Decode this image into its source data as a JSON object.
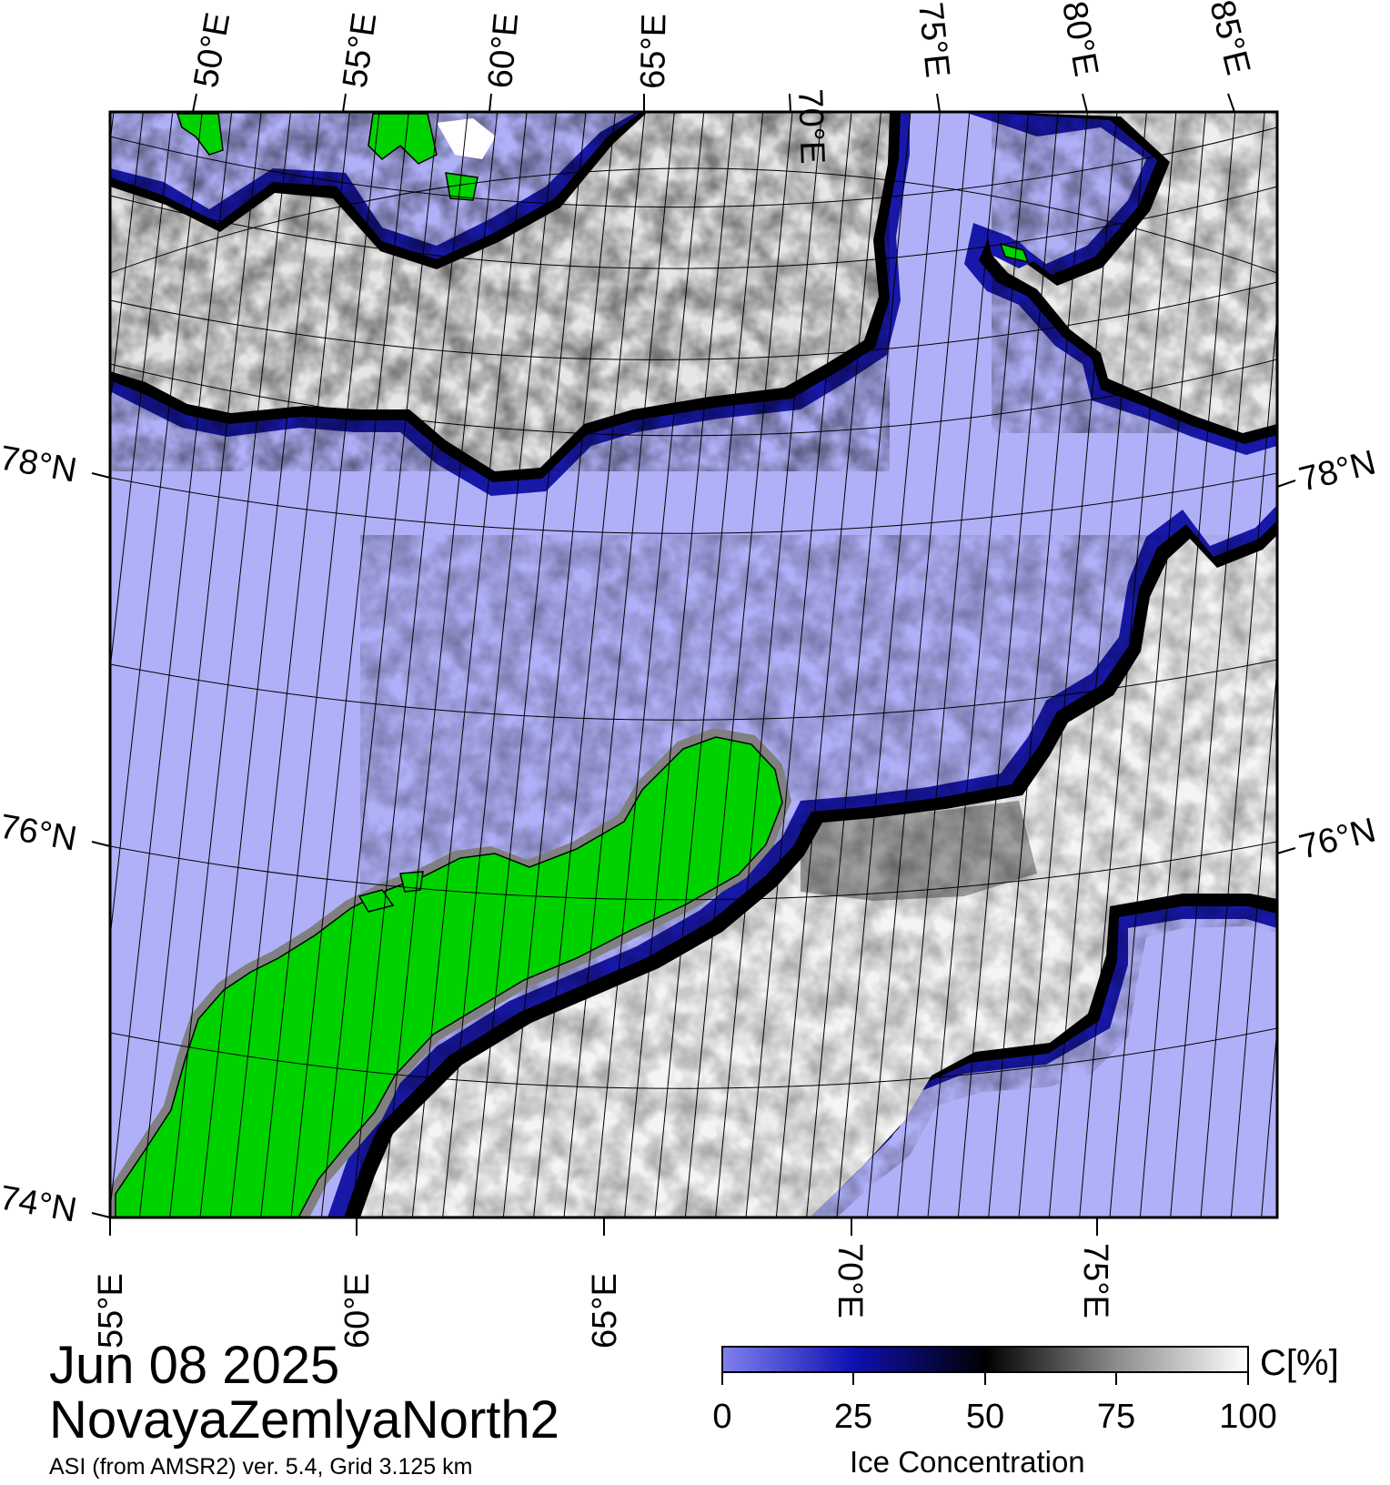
{
  "map": {
    "date": "Jun 08 2025",
    "region": "NovayaZemlyaNorth2",
    "source": "ASI (from AMSR2) ver. 5.4,  Grid 3.125 km",
    "colors": {
      "open_water": "#b0b0f8",
      "land": "#00d200",
      "coast": "#808080",
      "ice_low": "#2020b0",
      "ice_mid": "#000000",
      "ice_high": "#ffffff"
    },
    "top_lon_labels": [
      "50°E",
      "55°E",
      "60°E",
      "65°E",
      "70°E",
      "75°E",
      "80°E",
      "85°E"
    ],
    "bottom_lon_labels": [
      "55°E",
      "60°E",
      "65°E",
      "70°E",
      "75°E"
    ],
    "left_lat_labels": [
      "78°N",
      "76°N",
      "74°N"
    ],
    "right_lat_labels": [
      "78°N",
      "76°N"
    ]
  },
  "colorbar": {
    "title": "Ice Concentration",
    "unit": "C[%]",
    "ticks": [
      "0",
      "25",
      "50",
      "75",
      "100"
    ],
    "range": [
      0,
      100
    ]
  }
}
